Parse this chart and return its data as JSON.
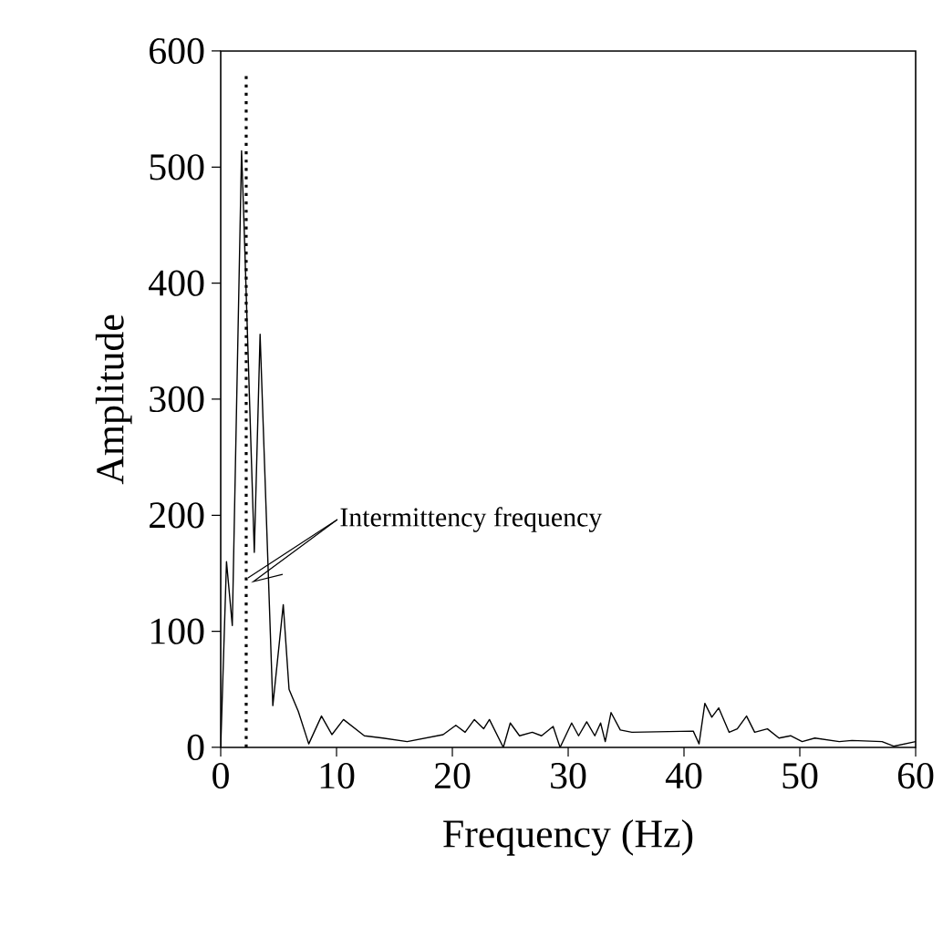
{
  "chart_data": {
    "type": "line",
    "xlabel": "Frequency (Hz)",
    "ylabel": "Amplitude",
    "x": [
      0,
      0.5,
      1.0,
      1.8,
      2.0,
      2.9,
      3.4,
      4.5,
      5.4,
      5.9,
      6.7,
      7.6,
      8.7,
      9.6,
      10.6,
      12.4,
      14,
      16.1,
      19.2,
      20.3,
      21.1,
      21.9,
      22.7,
      23.2,
      24.4,
      25.0,
      25.8,
      26.9,
      27.7,
      28.7,
      29.3,
      30.3,
      30.9,
      31.6,
      32.3,
      32.8,
      33.2,
      33.7,
      34.5,
      35.5,
      40.8,
      41.3,
      41.8,
      42.4,
      43.0,
      43.9,
      44.6,
      45.4,
      46.1,
      47.2,
      48.2,
      49.2,
      50.2,
      51.3,
      53.4,
      54.5,
      57.1,
      58.1,
      60
    ],
    "values": [
      0,
      160,
      105,
      514,
      455,
      168,
      356,
      36,
      123,
      50,
      31,
      3,
      27,
      11,
      24,
      10,
      8,
      5,
      11,
      19,
      13,
      24,
      16,
      24,
      0,
      21,
      10,
      13,
      10,
      18,
      0,
      21,
      10,
      22,
      10,
      21,
      5,
      30,
      15,
      13,
      14,
      3,
      38,
      26,
      34,
      13,
      16,
      27,
      13,
      16,
      8,
      10,
      5,
      8,
      5,
      6,
      5,
      1,
      5
    ],
    "color": "#000000",
    "line_style": "solid",
    "marker": "none",
    "xlim": [
      0,
      60
    ],
    "xticks": [
      0,
      10,
      20,
      30,
      40,
      50,
      60
    ],
    "ylim": [
      0,
      600
    ],
    "yticks": [
      0,
      100,
      200,
      300,
      400,
      500,
      600
    ],
    "ref_lines": [
      {
        "axis": "x",
        "value": 2.2,
        "line_style": "dotted",
        "color": "#000000"
      }
    ],
    "annotations": [
      {
        "text": "Intermittency frequency",
        "x": 2.2,
        "y": 146
      }
    ]
  }
}
